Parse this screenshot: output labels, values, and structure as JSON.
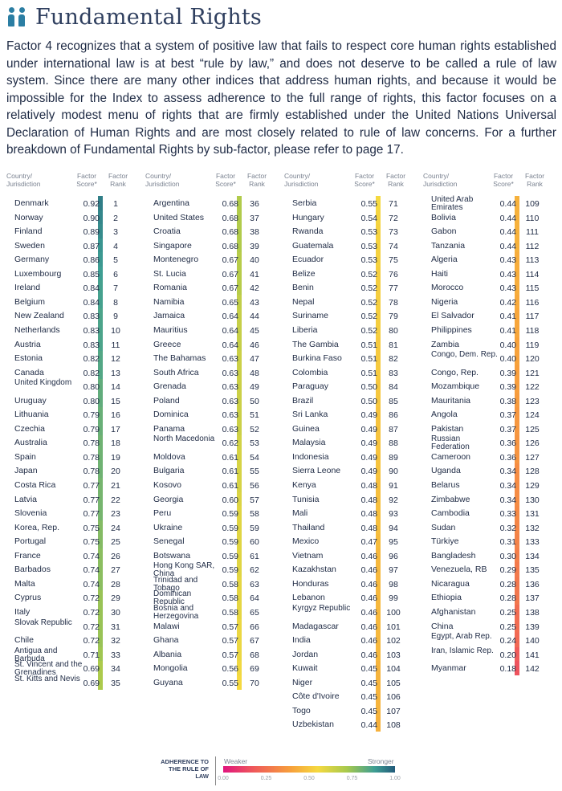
{
  "header": {
    "title": "Fundamental Rights",
    "icon": "people-icon"
  },
  "intro": {
    "lines": [
      "Factor 4 recognizes that a system of positive law that fails to respect core human rights established",
      "under international law is at best “rule by law,” and does not deserve to be called a rule of law",
      "system. Since there are many other indices that address human rights, and because it would be",
      "impossible for the Index to assess adherence to the full range of rights, this factor focuses on a",
      "relatively modest menu of rights that are firmly established under the United Nations Universal",
      "Declaration of Human Rights and are most closely related to rule of law concerns. For a further",
      "breakdown of Fundamental Rights by sub-factor, please refer to page  17."
    ]
  },
  "table": {
    "headers": {
      "country": "Country/\nJurisdiction",
      "score": "Factor\nScore*",
      "rank": "Factor\nRank"
    },
    "columns": [
      [
        [
          "Denmark",
          "0.92",
          "1"
        ],
        [
          "Norway",
          "0.90",
          "2"
        ],
        [
          "Finland",
          "0.89",
          "3"
        ],
        [
          "Sweden",
          "0.87",
          "4"
        ],
        [
          "Germany",
          "0.86",
          "5"
        ],
        [
          "Luxembourg",
          "0.85",
          "6"
        ],
        [
          "Ireland",
          "0.84",
          "7"
        ],
        [
          "Belgium",
          "0.84",
          "8"
        ],
        [
          "New Zealand",
          "0.83",
          "9"
        ],
        [
          "Netherlands",
          "0.83",
          "10"
        ],
        [
          "Austria",
          "0.83",
          "11"
        ],
        [
          "Estonia",
          "0.82",
          "12"
        ],
        [
          "Canada",
          "0.82",
          "13"
        ],
        [
          "United Kingdom",
          "0.80",
          "14"
        ],
        [
          "Uruguay",
          "0.80",
          "15"
        ],
        [
          "Lithuania",
          "0.79",
          "16"
        ],
        [
          "Czechia",
          "0.79",
          "17"
        ],
        [
          "Australia",
          "0.78",
          "18"
        ],
        [
          "Spain",
          "0.78",
          "19"
        ],
        [
          "Japan",
          "0.78",
          "20"
        ],
        [
          "Costa Rica",
          "0.77",
          "21"
        ],
        [
          "Latvia",
          "0.77",
          "22"
        ],
        [
          "Slovenia",
          "0.77",
          "23"
        ],
        [
          "Korea, Rep.",
          "0.75",
          "24"
        ],
        [
          "Portugal",
          "0.75",
          "25"
        ],
        [
          "France",
          "0.74",
          "26"
        ],
        [
          "Barbados",
          "0.74",
          "27"
        ],
        [
          "Malta",
          "0.74",
          "28"
        ],
        [
          "Cyprus",
          "0.72",
          "29"
        ],
        [
          "Italy",
          "0.72",
          "30"
        ],
        [
          "Slovak Republic",
          "0.72",
          "31"
        ],
        [
          "Chile",
          "0.72",
          "32"
        ],
        [
          "Antigua and Barbuda",
          "0.71",
          "33"
        ],
        [
          "St. Vincent and the Grenadines",
          "0.69",
          "34"
        ],
        [
          "St. Kitts and Nevis",
          "0.69",
          "35"
        ]
      ],
      [
        [
          "Argentina",
          "0.68",
          "36"
        ],
        [
          "United States",
          "0.68",
          "37"
        ],
        [
          "Croatia",
          "0.68",
          "38"
        ],
        [
          "Singapore",
          "0.68",
          "39"
        ],
        [
          "Montenegro",
          "0.67",
          "40"
        ],
        [
          "St. Lucia",
          "0.67",
          "41"
        ],
        [
          "Romania",
          "0.67",
          "42"
        ],
        [
          "Namibia",
          "0.65",
          "43"
        ],
        [
          "Jamaica",
          "0.64",
          "44"
        ],
        [
          "Mauritius",
          "0.64",
          "45"
        ],
        [
          "Greece",
          "0.64",
          "46"
        ],
        [
          "The Bahamas",
          "0.63",
          "47"
        ],
        [
          "South Africa",
          "0.63",
          "48"
        ],
        [
          "Grenada",
          "0.63",
          "49"
        ],
        [
          "Poland",
          "0.63",
          "50"
        ],
        [
          "Dominica",
          "0.63",
          "51"
        ],
        [
          "Panama",
          "0.63",
          "52"
        ],
        [
          "North Macedonia",
          "0.62",
          "53"
        ],
        [
          "Moldova",
          "0.61",
          "54"
        ],
        [
          "Bulgaria",
          "0.61",
          "55"
        ],
        [
          "Kosovo",
          "0.61",
          "56"
        ],
        [
          "Georgia",
          "0.60",
          "57"
        ],
        [
          "Peru",
          "0.59",
          "58"
        ],
        [
          "Ukraine",
          "0.59",
          "59"
        ],
        [
          "Senegal",
          "0.59",
          "60"
        ],
        [
          "Botswana",
          "0.59",
          "61"
        ],
        [
          "Hong Kong SAR, China",
          "0.59",
          "62"
        ],
        [
          "Trinidad and Tobago",
          "0.58",
          "63"
        ],
        [
          "Dominican Republic",
          "0.58",
          "64"
        ],
        [
          "Bosnia and Herzegovina",
          "0.58",
          "65"
        ],
        [
          "Malawi",
          "0.57",
          "66"
        ],
        [
          "Ghana",
          "0.57",
          "67"
        ],
        [
          "Albania",
          "0.57",
          "68"
        ],
        [
          "Mongolia",
          "0.56",
          "69"
        ],
        [
          "Guyana",
          "0.55",
          "70"
        ]
      ],
      [
        [
          "Serbia",
          "0.55",
          "71"
        ],
        [
          "Hungary",
          "0.54",
          "72"
        ],
        [
          "Rwanda",
          "0.53",
          "73"
        ],
        [
          "Guatemala",
          "0.53",
          "74"
        ],
        [
          "Ecuador",
          "0.53",
          "75"
        ],
        [
          "Belize",
          "0.52",
          "76"
        ],
        [
          "Benin",
          "0.52",
          "77"
        ],
        [
          "Nepal",
          "0.52",
          "78"
        ],
        [
          "Suriname",
          "0.52",
          "79"
        ],
        [
          "Liberia",
          "0.52",
          "80"
        ],
        [
          "The Gambia",
          "0.51",
          "81"
        ],
        [
          "Burkina Faso",
          "0.51",
          "82"
        ],
        [
          "Colombia",
          "0.51",
          "83"
        ],
        [
          "Paraguay",
          "0.50",
          "84"
        ],
        [
          "Brazil",
          "0.50",
          "85"
        ],
        [
          "Sri Lanka",
          "0.49",
          "86"
        ],
        [
          "Guinea",
          "0.49",
          "87"
        ],
        [
          "Malaysia",
          "0.49",
          "88"
        ],
        [
          "Indonesia",
          "0.49",
          "89"
        ],
        [
          "Sierra Leone",
          "0.49",
          "90"
        ],
        [
          "Kenya",
          "0.48",
          "91"
        ],
        [
          "Tunisia",
          "0.48",
          "92"
        ],
        [
          "Mali",
          "0.48",
          "93"
        ],
        [
          "Thailand",
          "0.48",
          "94"
        ],
        [
          "Mexico",
          "0.47",
          "95"
        ],
        [
          "Vietnam",
          "0.46",
          "96"
        ],
        [
          "Kazakhstan",
          "0.46",
          "97"
        ],
        [
          "Honduras",
          "0.46",
          "98"
        ],
        [
          "Lebanon",
          "0.46",
          "99"
        ],
        [
          "Kyrgyz Republic",
          "0.46",
          "100"
        ],
        [
          "Madagascar",
          "0.46",
          "101"
        ],
        [
          "India",
          "0.46",
          "102"
        ],
        [
          "Jordan",
          "0.46",
          "103"
        ],
        [
          "Kuwait",
          "0.45",
          "104"
        ],
        [
          "Niger",
          "0.45",
          "105"
        ],
        [
          "Côte d'Ivoire",
          "0.45",
          "106"
        ],
        [
          "Togo",
          "0.45",
          "107"
        ],
        [
          "Uzbekistan",
          "0.44",
          "108"
        ]
      ],
      [
        [
          "United Arab Emirates",
          "0.44",
          "109"
        ],
        [
          "Bolivia",
          "0.44",
          "110"
        ],
        [
          "Gabon",
          "0.44",
          "111"
        ],
        [
          "Tanzania",
          "0.44",
          "112"
        ],
        [
          "Algeria",
          "0.43",
          "113"
        ],
        [
          "Haiti",
          "0.43",
          "114"
        ],
        [
          "Morocco",
          "0.43",
          "115"
        ],
        [
          "Nigeria",
          "0.42",
          "116"
        ],
        [
          "El Salvador",
          "0.41",
          "117"
        ],
        [
          "Philippines",
          "0.41",
          "118"
        ],
        [
          "Zambia",
          "0.40",
          "119"
        ],
        [
          "Congo, Dem. Rep.",
          "0.40",
          "120"
        ],
        [
          "Congo, Rep.",
          "0.39",
          "121"
        ],
        [
          "Mozambique",
          "0.39",
          "122"
        ],
        [
          "Mauritania",
          "0.38",
          "123"
        ],
        [
          "Angola",
          "0.37",
          "124"
        ],
        [
          "Pakistan",
          "0.37",
          "125"
        ],
        [
          "Russian Federation",
          "0.36",
          "126"
        ],
        [
          "Cameroon",
          "0.36",
          "127"
        ],
        [
          "Uganda",
          "0.34",
          "128"
        ],
        [
          "Belarus",
          "0.34",
          "129"
        ],
        [
          "Zimbabwe",
          "0.34",
          "130"
        ],
        [
          "Cambodia",
          "0.33",
          "131"
        ],
        [
          "Sudan",
          "0.32",
          "132"
        ],
        [
          "Türkiye",
          "0.31",
          "133"
        ],
        [
          "Bangladesh",
          "0.30",
          "134"
        ],
        [
          "Venezuela, RB",
          "0.29",
          "135"
        ],
        [
          "Nicaragua",
          "0.28",
          "136"
        ],
        [
          "Ethiopia",
          "0.28",
          "137"
        ],
        [
          "Afghanistan",
          "0.25",
          "138"
        ],
        [
          "China",
          "0.25",
          "139"
        ],
        [
          "Egypt, Arab Rep.",
          "0.24",
          "140"
        ],
        [
          "Iran, Islamic Rep.",
          "0.20",
          "141"
        ],
        [
          "Myanmar",
          "0.18",
          "142"
        ]
      ]
    ]
  },
  "legend": {
    "label": "ADHERENCE TO THE RULE OF LAW",
    "weaker": "Weaker",
    "stronger": "Stronger",
    "ticks": [
      "0.00",
      "0.25",
      "0.50",
      "0.75",
      "1.00"
    ],
    "colors": [
      "#e0157e",
      "#ef5a5a",
      "#f7a23b",
      "#f5d940",
      "#a7c94d",
      "#3e9e93",
      "#215a7a"
    ]
  }
}
